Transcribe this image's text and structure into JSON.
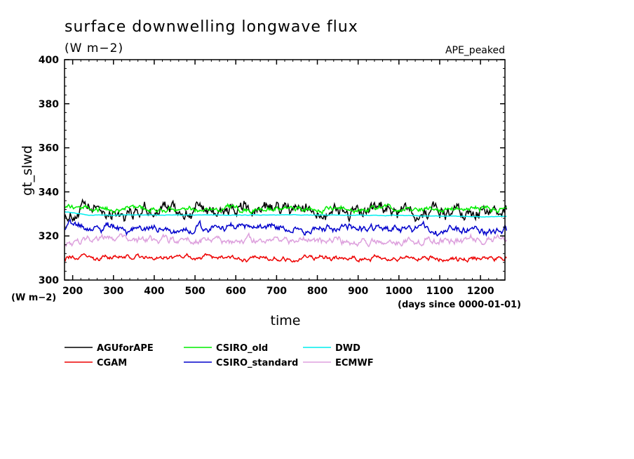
{
  "chart_data": {
    "type": "line",
    "title": "surface downwelling longwave flux",
    "units": "(W m−2)",
    "experiment": "APE_peaked",
    "ylabel": "gt_slwd",
    "yunit": "(W m−2)",
    "xlabel": "time",
    "xunit": "(days since 0000-01-01)",
    "xlim": [
      180,
      1260
    ],
    "ylim": [
      300,
      400
    ],
    "xticks": [
      200,
      300,
      400,
      500,
      600,
      700,
      800,
      900,
      1000,
      1100,
      1200
    ],
    "yticks": [
      300,
      320,
      340,
      360,
      380,
      400
    ],
    "series": [
      {
        "name": "AGUforAPE",
        "color": "#000000",
        "mean": 331.5,
        "amp": 2.6,
        "start": 330.5
      },
      {
        "name": "CSIRO_old",
        "color": "#00ee00",
        "mean": 332.3,
        "amp": 1.0,
        "start": 333.5
      },
      {
        "name": "DWD",
        "color": "#00eeee",
        "mean": 329.5,
        "amp": 0.1,
        "start": 331.0,
        "end": 328.8
      },
      {
        "name": "CGAM",
        "color": "#ee0000",
        "mean": 310.0,
        "amp": 0.9,
        "start": 310.0
      },
      {
        "name": "CSIRO_standard",
        "color": "#0000cc",
        "mean": 323.0,
        "amp": 1.4,
        "start": 324.5
      },
      {
        "name": "ECMWF",
        "color": "#dda0dd",
        "mean": 318.0,
        "amp": 1.3,
        "start": 316.5
      }
    ]
  }
}
